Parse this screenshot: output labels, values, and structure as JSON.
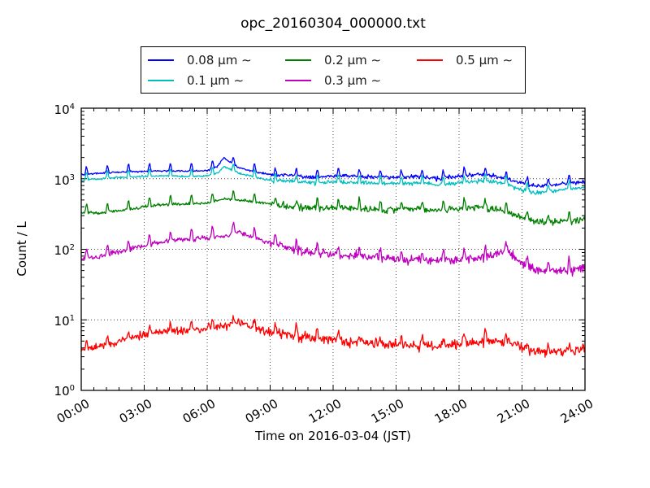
{
  "figure": {
    "title": "opc_20160304_000000.txt",
    "background": "#ffffff"
  },
  "legend": {
    "items": [
      {
        "label": "0.08 μm ∼",
        "color": "#0000ff"
      },
      {
        "label": "0.1 μm ∼",
        "color": "#00bfbf"
      },
      {
        "label": "0.2 μm ∼",
        "color": "#008000"
      },
      {
        "label": "0.3 μm ∼",
        "color": "#bf00bf"
      },
      {
        "label": "0.5 μm ∼",
        "color": "#ff0000"
      }
    ]
  },
  "axes": {
    "xlabel": "Time on 2016-03-04 (JST)",
    "ylabel": "Count / L",
    "xticklabels": [
      "00:00",
      "03:00",
      "06:00",
      "09:00",
      "12:00",
      "15:00",
      "18:00",
      "21:00",
      "24:00"
    ],
    "yticks": [
      {
        "base": "10",
        "exp": "4"
      },
      {
        "base": "10",
        "exp": "3"
      },
      {
        "base": "10",
        "exp": "2"
      },
      {
        "base": "10",
        "exp": "1"
      },
      {
        "base": "10",
        "exp": "0"
      }
    ]
  },
  "chart_data": {
    "type": "line",
    "title": "opc_20160304_000000.txt",
    "xlabel": "Time on 2016-03-04 (JST)",
    "ylabel": "Count / L",
    "x_unit": "hours JST, 0 to 24",
    "x_range": [
      0,
      24
    ],
    "y_scale": "log10",
    "y_range": [
      1,
      10000
    ],
    "grid": {
      "style": "dotted",
      "x_major_every_hours": 3,
      "y_major_lines": [
        10,
        100,
        1000
      ]
    },
    "legend_position": "top-center, 3 columns, 2 rows",
    "note": "1-2 min resolution particle counts; sharp calibration spikes about 15 min past each hour; trace noise increases after 09:00",
    "series": [
      {
        "name": "0.08 μm ∼",
        "color": "#0000ff",
        "anchor_points": [
          [
            0,
            1150
          ],
          [
            1,
            1200
          ],
          [
            2,
            1250
          ],
          [
            3,
            1280
          ],
          [
            4,
            1300
          ],
          [
            5,
            1280
          ],
          [
            6,
            1300
          ],
          [
            6.5,
            1500
          ],
          [
            6.8,
            2000
          ],
          [
            7.1,
            1700
          ],
          [
            7.5,
            1450
          ],
          [
            8,
            1300
          ],
          [
            9,
            1150
          ],
          [
            10,
            1100
          ],
          [
            11,
            1050
          ],
          [
            12,
            1100
          ],
          [
            13,
            1080
          ],
          [
            14,
            1050
          ],
          [
            15,
            1050
          ],
          [
            16,
            1080
          ],
          [
            17,
            1000
          ],
          [
            18,
            1080
          ],
          [
            19,
            1150
          ],
          [
            20,
            1050
          ],
          [
            21,
            880
          ],
          [
            21.8,
            780
          ],
          [
            22.5,
            820
          ],
          [
            23,
            850
          ],
          [
            24,
            900
          ]
        ],
        "noise_sigma_before_09": 0.015,
        "noise_sigma_after_09": 0.032,
        "hourly_spike_factor": 1.32,
        "spike_minute": 15
      },
      {
        "name": "0.1 μm ∼",
        "color": "#00bfbf",
        "anchor_points": [
          [
            0,
            950
          ],
          [
            1,
            1000
          ],
          [
            2,
            1050
          ],
          [
            3,
            1080
          ],
          [
            4,
            1100
          ],
          [
            5,
            1080
          ],
          [
            6,
            1100
          ],
          [
            6.5,
            1200
          ],
          [
            6.8,
            1500
          ],
          [
            7.1,
            1350
          ],
          [
            7.5,
            1200
          ],
          [
            8,
            1100
          ],
          [
            9,
            950
          ],
          [
            10,
            920
          ],
          [
            11,
            880
          ],
          [
            12,
            900
          ],
          [
            13,
            890
          ],
          [
            14,
            870
          ],
          [
            15,
            860
          ],
          [
            16,
            880
          ],
          [
            17,
            830
          ],
          [
            18,
            880
          ],
          [
            19,
            930
          ],
          [
            20,
            880
          ],
          [
            21,
            700
          ],
          [
            21.8,
            630
          ],
          [
            22.5,
            680
          ],
          [
            23,
            700
          ],
          [
            24,
            770
          ]
        ],
        "noise_sigma_before_09": 0.015,
        "noise_sigma_after_09": 0.032,
        "hourly_spike_factor": 1.32,
        "spike_minute": 15
      },
      {
        "name": "0.2 μm ∼",
        "color": "#008000",
        "anchor_points": [
          [
            0,
            330
          ],
          [
            1,
            325
          ],
          [
            2,
            360
          ],
          [
            3,
            400
          ],
          [
            4,
            430
          ],
          [
            5,
            440
          ],
          [
            6,
            450
          ],
          [
            6.8,
            520
          ],
          [
            7.3,
            500
          ],
          [
            8,
            480
          ],
          [
            9,
            440
          ],
          [
            10,
            400
          ],
          [
            11,
            380
          ],
          [
            12,
            400
          ],
          [
            13,
            380
          ],
          [
            14,
            360
          ],
          [
            15,
            370
          ],
          [
            16,
            380
          ],
          [
            17,
            350
          ],
          [
            18,
            380
          ],
          [
            19,
            400
          ],
          [
            20,
            360
          ],
          [
            21,
            280
          ],
          [
            22,
            240
          ],
          [
            23,
            245
          ],
          [
            24,
            260
          ]
        ],
        "noise_sigma_before_09": 0.022,
        "noise_sigma_after_09": 0.05,
        "hourly_spike_factor": 1.38,
        "spike_minute": 15
      },
      {
        "name": "0.3 μm ∼",
        "color": "#bf00bf",
        "anchor_points": [
          [
            0,
            72
          ],
          [
            1,
            80
          ],
          [
            2,
            95
          ],
          [
            3,
            112
          ],
          [
            4,
            130
          ],
          [
            5,
            140
          ],
          [
            6,
            145
          ],
          [
            7,
            155
          ],
          [
            7.3,
            185
          ],
          [
            8,
            150
          ],
          [
            9,
            125
          ],
          [
            10,
            100
          ],
          [
            11,
            92
          ],
          [
            12,
            85
          ],
          [
            13,
            80
          ],
          [
            14,
            76
          ],
          [
            15,
            72
          ],
          [
            16,
            70
          ],
          [
            17,
            68
          ],
          [
            18,
            70
          ],
          [
            19,
            76
          ],
          [
            20,
            88
          ],
          [
            20.3,
            95
          ],
          [
            21,
            62
          ],
          [
            22,
            50
          ],
          [
            23,
            48
          ],
          [
            24,
            56
          ]
        ],
        "noise_sigma_before_09": 0.04,
        "noise_sigma_after_09": 0.07,
        "hourly_spike_factor": 1.42,
        "spike_minute": 15
      },
      {
        "name": "0.5 μm ∼",
        "color": "#ff0000",
        "anchor_points": [
          [
            0,
            3.8
          ],
          [
            1,
            4.2
          ],
          [
            2,
            5.2
          ],
          [
            3,
            6.2
          ],
          [
            4,
            6.8
          ],
          [
            5,
            7.0
          ],
          [
            6,
            7.6
          ],
          [
            7,
            8.2
          ],
          [
            7.5,
            9.5
          ],
          [
            8,
            8.0
          ],
          [
            9,
            6.6
          ],
          [
            10,
            6.0
          ],
          [
            11,
            5.5
          ],
          [
            12,
            5.2
          ],
          [
            13,
            4.8
          ],
          [
            14,
            4.6
          ],
          [
            15,
            4.5
          ],
          [
            16,
            4.4
          ],
          [
            17,
            4.3
          ],
          [
            18,
            4.5
          ],
          [
            19,
            4.9
          ],
          [
            20,
            5.0
          ],
          [
            21,
            4.0
          ],
          [
            22,
            3.4
          ],
          [
            23,
            3.5
          ],
          [
            24,
            3.9
          ]
        ],
        "noise_sigma_before_09": 0.06,
        "noise_sigma_after_09": 0.08,
        "hourly_spike_factor": 1.35,
        "spike_minute": 15
      }
    ]
  }
}
